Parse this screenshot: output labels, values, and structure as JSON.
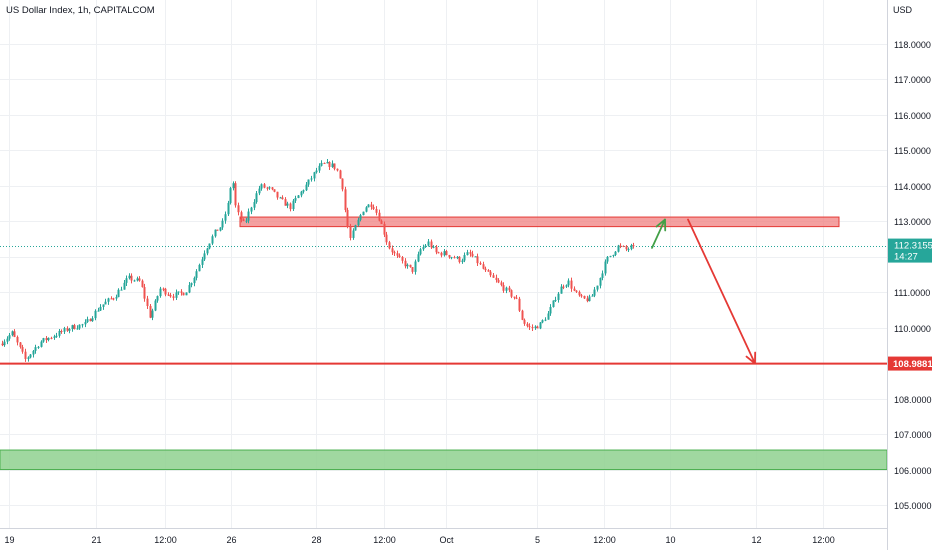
{
  "chart_data": {
    "type": "candlestick",
    "title": "US Dollar Index, 1h, CAPITALCOM",
    "price_axis_unit": "USD",
    "y_ticks": [
      "105.0000",
      "106.0000",
      "107.0000",
      "108.0000",
      "109.0000",
      "110.0000",
      "111.0000",
      "112.0000",
      "113.0000",
      "114.0000",
      "115.0000",
      "116.0000",
      "117.0000",
      "118.0000"
    ],
    "x_ticks": [
      "19",
      "21",
      "12:00",
      "26",
      "28",
      "12:00",
      "Oct",
      "5",
      "12:00",
      "10",
      "12",
      "12:00"
    ],
    "ylim": [
      104.2,
      119.2
    ],
    "grid": true,
    "last_price": {
      "value": "112.3155",
      "countdown": "14:27",
      "color": "#26a69a"
    },
    "support_line": {
      "value": "108.9881",
      "color": "#e53935"
    },
    "resistance_zone": {
      "low": 112.85,
      "high": 113.12,
      "color": "#f08080"
    },
    "support_zone": {
      "low": 106.0,
      "high": 106.55,
      "color": "#8fd18f"
    },
    "colors": {
      "up": "#26a69a",
      "down": "#ef5350",
      "grid": "#eef0f3",
      "axis_text": "#131722",
      "green_arrow": "#43a047",
      "red_arrow": "#e53935"
    },
    "anchors": [
      [
        0,
        109.55
      ],
      [
        12,
        109.85
      ],
      [
        25,
        109.1
      ],
      [
        40,
        109.6
      ],
      [
        55,
        109.8
      ],
      [
        70,
        110.0
      ],
      [
        85,
        110.1
      ],
      [
        100,
        110.6
      ],
      [
        115,
        110.9
      ],
      [
        128,
        111.4
      ],
      [
        140,
        111.3
      ],
      [
        150,
        110.3
      ],
      [
        160,
        111.1
      ],
      [
        172,
        110.9
      ],
      [
        185,
        111.0
      ],
      [
        195,
        111.5
      ],
      [
        205,
        112.2
      ],
      [
        215,
        112.7
      ],
      [
        222,
        112.9
      ],
      [
        228,
        113.5
      ],
      [
        232,
        114.3
      ],
      [
        236,
        113.3
      ],
      [
        244,
        112.9
      ],
      [
        252,
        113.5
      ],
      [
        260,
        114.0
      ],
      [
        270,
        113.9
      ],
      [
        280,
        113.6
      ],
      [
        290,
        113.4
      ],
      [
        300,
        113.8
      ],
      [
        308,
        114.1
      ],
      [
        315,
        114.4
      ],
      [
        322,
        114.6
      ],
      [
        330,
        114.6
      ],
      [
        336,
        114.5
      ],
      [
        342,
        114.0
      ],
      [
        346,
        113.0
      ],
      [
        350,
        112.5
      ],
      [
        356,
        112.9
      ],
      [
        364,
        113.4
      ],
      [
        372,
        113.5
      ],
      [
        380,
        113.0
      ],
      [
        388,
        112.3
      ],
      [
        396,
        112.0
      ],
      [
        404,
        111.8
      ],
      [
        412,
        111.6
      ],
      [
        420,
        112.2
      ],
      [
        428,
        112.4
      ],
      [
        436,
        112.1
      ],
      [
        444,
        112.1
      ],
      [
        452,
        112.0
      ],
      [
        460,
        111.9
      ],
      [
        468,
        112.1
      ],
      [
        476,
        111.9
      ],
      [
        484,
        111.6
      ],
      [
        492,
        111.4
      ],
      [
        500,
        111.2
      ],
      [
        508,
        111.0
      ],
      [
        516,
        110.8
      ],
      [
        522,
        110.2
      ],
      [
        528,
        110.0
      ],
      [
        534,
        110.0
      ],
      [
        540,
        110.1
      ],
      [
        548,
        110.4
      ],
      [
        556,
        110.9
      ],
      [
        562,
        111.2
      ],
      [
        568,
        111.3
      ],
      [
        574,
        111.0
      ],
      [
        582,
        110.8
      ],
      [
        590,
        110.8
      ],
      [
        598,
        111.3
      ],
      [
        606,
        111.9
      ],
      [
        612,
        112.1
      ],
      [
        618,
        112.3
      ],
      [
        626,
        112.2
      ],
      [
        634,
        112.32
      ]
    ],
    "annotations": {
      "green_arrow": {
        "from": [
          652,
          112.25
        ],
        "to": [
          665,
          113.05
        ]
      },
      "red_arrow": {
        "from": [
          688,
          113.05
        ],
        "to": [
          755,
          108.99
        ]
      }
    }
  }
}
